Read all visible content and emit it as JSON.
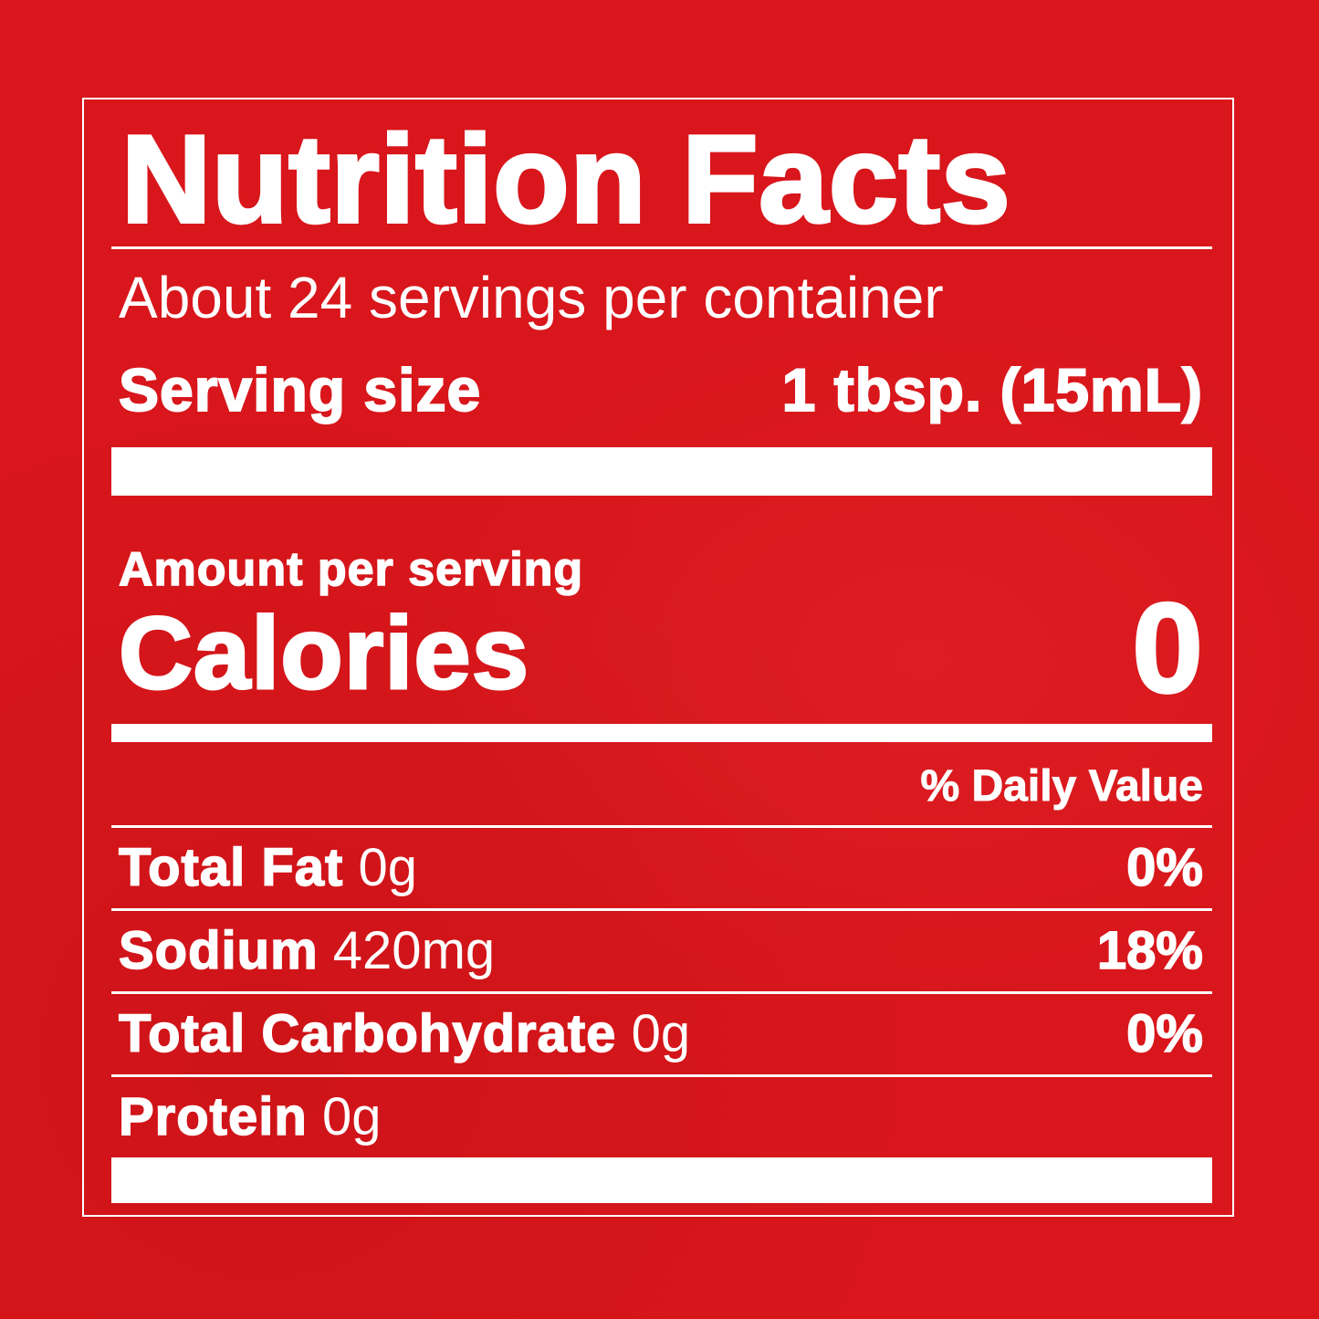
{
  "label": {
    "title": "Nutrition Facts",
    "servings_per_container": "About 24 servings per container",
    "serving_size_label": "Serving size",
    "serving_size_value": "1 tbsp. (15mL)",
    "amount_per_serving": "Amount per serving",
    "calories_label": "Calories",
    "calories_value": "0",
    "daily_value_header": "% Daily Value",
    "nutrients": [
      {
        "name": "Total Fat",
        "amount": "0g",
        "dv": "0%"
      },
      {
        "name": "Sodium",
        "amount": "420mg",
        "dv": "18%"
      },
      {
        "name": "Total Carbohydrate",
        "amount": "0g",
        "dv": "0%"
      },
      {
        "name": "Protein",
        "amount": "0g",
        "dv": ""
      }
    ]
  },
  "colors": {
    "background": "#d8161b",
    "text": "#ffffff"
  }
}
